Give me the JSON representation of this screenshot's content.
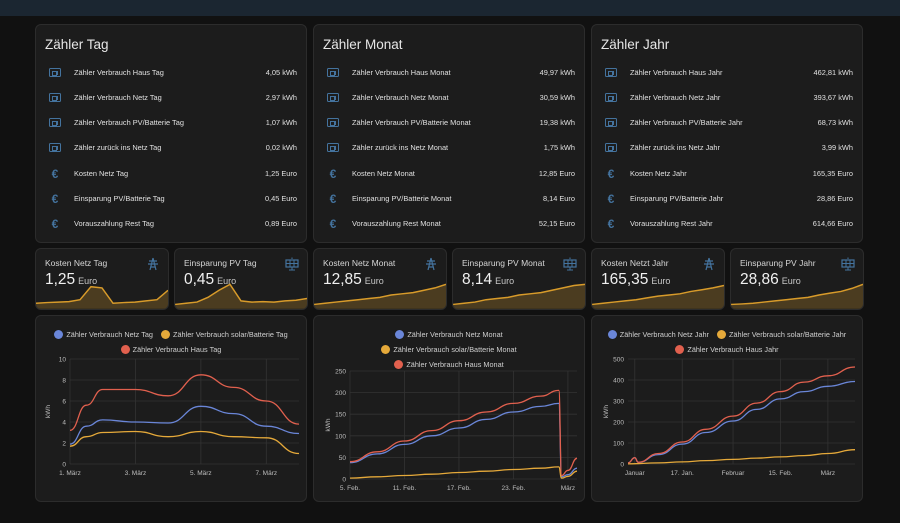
{
  "colors": {
    "icon": "#44739e",
    "blue": "#6a86d8",
    "orange": "#e5a93a",
    "red": "#e1604e",
    "spark": "#d89b2a"
  },
  "counter_cards": [
    {
      "title": "Zähler Tag",
      "rows": [
        {
          "icon": "meter-icon",
          "label": "Zähler Verbrauch Haus Tag",
          "value": "4,05 kWh"
        },
        {
          "icon": "meter-icon",
          "label": "Zähler Verbrauch Netz Tag",
          "value": "2,97 kWh"
        },
        {
          "icon": "meter-icon",
          "label": "Zähler Verbrauch PV/Batterie Tag",
          "value": "1,07 kWh"
        },
        {
          "icon": "meter-icon",
          "label": "Zähler zurück ins Netz Tag",
          "value": "0,02 kWh"
        },
        {
          "icon": "euro-icon",
          "label": "Kosten Netz Tag",
          "value": "1,25 Euro"
        },
        {
          "icon": "euro-icon",
          "label": "Einsparung PV/Batterie Tag",
          "value": "0,45 Euro"
        },
        {
          "icon": "euro-icon",
          "label": "Vorauszahlung Rest Tag",
          "value": "0,89 Euro"
        }
      ]
    },
    {
      "title": "Zähler Monat",
      "rows": [
        {
          "icon": "meter-icon",
          "label": "Zähler Verbrauch Haus Monat",
          "value": "49,97 kWh"
        },
        {
          "icon": "meter-icon",
          "label": "Zähler Verbrauch Netz Monat",
          "value": "30,59 kWh"
        },
        {
          "icon": "meter-icon",
          "label": "Zähler Verbrauch PV/Batterie Monat",
          "value": "19,38 kWh"
        },
        {
          "icon": "meter-icon",
          "label": "Zähler zurück ins Netz Monat",
          "value": "1,75 kWh"
        },
        {
          "icon": "euro-icon",
          "label": "Kosten Netz Monat",
          "value": "12,85 Euro"
        },
        {
          "icon": "euro-icon",
          "label": "Einsparung PV/Batterie Monat",
          "value": "8,14 Euro"
        },
        {
          "icon": "euro-icon",
          "label": "Vorauszahlung Rest Monat",
          "value": "52,15 Euro"
        }
      ]
    },
    {
      "title": "Zähler Jahr",
      "rows": [
        {
          "icon": "meter-icon",
          "label": "Zähler Verbrauch Haus Jahr",
          "value": "462,81 kWh"
        },
        {
          "icon": "meter-icon",
          "label": "Zähler Verbrauch Netz Jahr",
          "value": "393,67 kWh"
        },
        {
          "icon": "meter-icon",
          "label": "Zähler Verbrauch PV/Batterie Jahr",
          "value": "68,73 kWh"
        },
        {
          "icon": "meter-icon",
          "label": "Zähler zurück ins Netz Jahr",
          "value": "3,99 kWh"
        },
        {
          "icon": "euro-icon",
          "label": "Kosten Netz Jahr",
          "value": "165,35 Euro"
        },
        {
          "icon": "euro-icon",
          "label": "Einsparung PV/Batterie Jahr",
          "value": "28,86 Euro"
        },
        {
          "icon": "euro-icon",
          "label": "Vorauszahlung Rest Jahr",
          "value": "614,66 Euro"
        }
      ]
    }
  ],
  "sensor_cards": [
    {
      "name": "Kosten Netz Tag",
      "value": "1,25",
      "unit": "Euro",
      "icon": "transmission-tower-icon",
      "spark": [
        0.15,
        0.18,
        0.2,
        0.22,
        0.3,
        0.85,
        0.8,
        0.15,
        0.18,
        0.2,
        0.25,
        0.3,
        0.7
      ]
    },
    {
      "name": "Einsparung PV Tag",
      "value": "0,45",
      "unit": "Euro",
      "icon": "solar-panel-icon",
      "spark": [
        0.1,
        0.15,
        0.2,
        0.4,
        0.7,
        0.95,
        0.25,
        0.2,
        0.22,
        0.2,
        0.25,
        0.28,
        0.35
      ]
    },
    {
      "name": "Kosten Netz Monat",
      "value": "12,85",
      "unit": "Euro",
      "icon": "transmission-tower-icon",
      "spark": [
        0.1,
        0.15,
        0.2,
        0.25,
        0.3,
        0.35,
        0.4,
        0.5,
        0.55,
        0.6,
        0.7,
        0.8,
        0.95
      ]
    },
    {
      "name": "Einsparung PV Monat",
      "value": "8,14",
      "unit": "Euro",
      "icon": "solar-panel-icon",
      "spark": [
        0.1,
        0.15,
        0.2,
        0.3,
        0.35,
        0.4,
        0.5,
        0.55,
        0.6,
        0.7,
        0.8,
        0.9,
        0.95
      ]
    },
    {
      "name": "Kosten Netzt Jahr",
      "value": "165,35",
      "unit": "Euro",
      "icon": "transmission-tower-icon",
      "spark": [
        0.1,
        0.15,
        0.2,
        0.25,
        0.3,
        0.38,
        0.45,
        0.5,
        0.55,
        0.65,
        0.72,
        0.8,
        0.9
      ]
    },
    {
      "name": "Einsparung PV Jahr",
      "value": "28,86",
      "unit": "Euro",
      "icon": "solar-panel-icon",
      "spark": [
        0.1,
        0.12,
        0.15,
        0.2,
        0.25,
        0.3,
        0.35,
        0.4,
        0.5,
        0.58,
        0.65,
        0.78,
        0.95
      ]
    }
  ],
  "chart_data": [
    {
      "type": "line",
      "ylabel": "kWh",
      "ylim": [
        0,
        10
      ],
      "yticks": [
        0,
        2,
        4,
        6,
        8,
        10
      ],
      "xlim": [
        1,
        8
      ],
      "xticks": [
        {
          "x": 1,
          "label": "1. März"
        },
        {
          "x": 3,
          "label": "3. März"
        },
        {
          "x": 5,
          "label": "5. März"
        },
        {
          "x": 7,
          "label": "7. März"
        }
      ],
      "grid": true,
      "legend": "top",
      "series": [
        {
          "name": "Zähler Verbrauch Netz Tag",
          "color": "#6a86d8",
          "points": [
            [
              1,
              1.9
            ],
            [
              1.5,
              3.6
            ],
            [
              2,
              4.2
            ],
            [
              3,
              4.0
            ],
            [
              4,
              3.9
            ],
            [
              5,
              5.5
            ],
            [
              6,
              4.8
            ],
            [
              7,
              3.6
            ],
            [
              8,
              2.9
            ]
          ]
        },
        {
          "name": "Zähler Verbrauch solar/Batterie Tag",
          "color": "#e5a93a",
          "points": [
            [
              1,
              1.7
            ],
            [
              1.5,
              2.6
            ],
            [
              2,
              3.0
            ],
            [
              3,
              3.1
            ],
            [
              4,
              2.6
            ],
            [
              5,
              3.1
            ],
            [
              6,
              2.6
            ],
            [
              7,
              2.5
            ],
            [
              8,
              1.0
            ]
          ]
        },
        {
          "name": "Zähler Verbrauch Haus Tag",
          "color": "#e1604e",
          "points": [
            [
              1,
              3.2
            ],
            [
              1.5,
              5.6
            ],
            [
              2,
              7.1
            ],
            [
              3,
              7.1
            ],
            [
              4,
              6.5
            ],
            [
              5,
              8.5
            ],
            [
              6,
              7.3
            ],
            [
              7,
              6.0
            ],
            [
              8,
              3.8
            ]
          ]
        }
      ]
    },
    {
      "type": "line",
      "ylabel": "kWh",
      "ylim": [
        0,
        250
      ],
      "yticks": [
        0,
        50,
        100,
        150,
        200,
        250
      ],
      "xlim": [
        5,
        30
      ],
      "xticks": [
        {
          "x": 5,
          "label": "5. Feb."
        },
        {
          "x": 11,
          "label": "11. Feb."
        },
        {
          "x": 17,
          "label": "17. Feb."
        },
        {
          "x": 23,
          "label": "23. Feb."
        },
        {
          "x": 29,
          "label": "März"
        }
      ],
      "grid": true,
      "legend": "top",
      "series": [
        {
          "name": "Zähler Verbrauch Netz Monat",
          "color": "#6a86d8",
          "points": [
            [
              5,
              38
            ],
            [
              8,
              58
            ],
            [
              11,
              80
            ],
            [
              14,
              100
            ],
            [
              17,
              118
            ],
            [
              20,
              138
            ],
            [
              23,
              155
            ],
            [
              26,
              168
            ],
            [
              28,
              175
            ],
            [
              28.3,
              5
            ],
            [
              29,
              10
            ],
            [
              30,
              25
            ]
          ]
        },
        {
          "name": "Zähler Verbrauch solar/Batterie Monat",
          "color": "#e5a93a",
          "points": [
            [
              5,
              2
            ],
            [
              8,
              5
            ],
            [
              11,
              8
            ],
            [
              14,
              11
            ],
            [
              17,
              15
            ],
            [
              20,
              18
            ],
            [
              23,
              22
            ],
            [
              26,
              25
            ],
            [
              28,
              28
            ],
            [
              28.3,
              2
            ],
            [
              29,
              6
            ],
            [
              30,
              18
            ]
          ]
        },
        {
          "name": "Zähler Verbrauch Haus Monat",
          "color": "#e1604e",
          "points": [
            [
              5,
              40
            ],
            [
              8,
              63
            ],
            [
              11,
              88
            ],
            [
              14,
              112
            ],
            [
              17,
              135
            ],
            [
              20,
              155
            ],
            [
              23,
              175
            ],
            [
              26,
              192
            ],
            [
              28,
              205
            ],
            [
              28.3,
              8
            ],
            [
              29,
              20
            ],
            [
              30,
              48
            ]
          ]
        }
      ]
    },
    {
      "type": "line",
      "ylabel": "kWh",
      "ylim": [
        0,
        500
      ],
      "yticks": [
        0,
        100,
        200,
        300,
        400,
        500
      ],
      "xlim": [
        1,
        68
      ],
      "xticks": [
        {
          "x": 3,
          "label": "Januar"
        },
        {
          "x": 17,
          "label": "17. Jan."
        },
        {
          "x": 32,
          "label": "Februar"
        },
        {
          "x": 46,
          "label": "15. Feb."
        },
        {
          "x": 60,
          "label": "März"
        }
      ],
      "grid": true,
      "legend": "top",
      "series": [
        {
          "name": "Zähler Verbrauch Netz Jahr",
          "color": "#6a86d8",
          "points": [
            [
              1,
              5
            ],
            [
              3,
              30
            ],
            [
              4,
              8
            ],
            [
              10,
              45
            ],
            [
              17,
              95
            ],
            [
              24,
              150
            ],
            [
              32,
              205
            ],
            [
              39,
              260
            ],
            [
              46,
              310
            ],
            [
              53,
              345
            ],
            [
              60,
              370
            ],
            [
              68,
              393
            ]
          ]
        },
        {
          "name": "Zähler Verbrauch solar/Batterie Jahr",
          "color": "#e5a93a",
          "points": [
            [
              1,
              1
            ],
            [
              10,
              5
            ],
            [
              17,
              10
            ],
            [
              24,
              16
            ],
            [
              32,
              22
            ],
            [
              39,
              28
            ],
            [
              46,
              34
            ],
            [
              53,
              40
            ],
            [
              60,
              50
            ],
            [
              68,
              68
            ]
          ]
        },
        {
          "name": "Zähler Verbrauch Haus Jahr",
          "color": "#e1604e",
          "points": [
            [
              1,
              5
            ],
            [
              3,
              30
            ],
            [
              4,
              8
            ],
            [
              10,
              50
            ],
            [
              17,
              105
            ],
            [
              24,
              165
            ],
            [
              32,
              228
            ],
            [
              39,
              290
            ],
            [
              46,
              345
            ],
            [
              53,
              390
            ],
            [
              60,
              420
            ],
            [
              68,
              462
            ]
          ]
        }
      ]
    }
  ]
}
